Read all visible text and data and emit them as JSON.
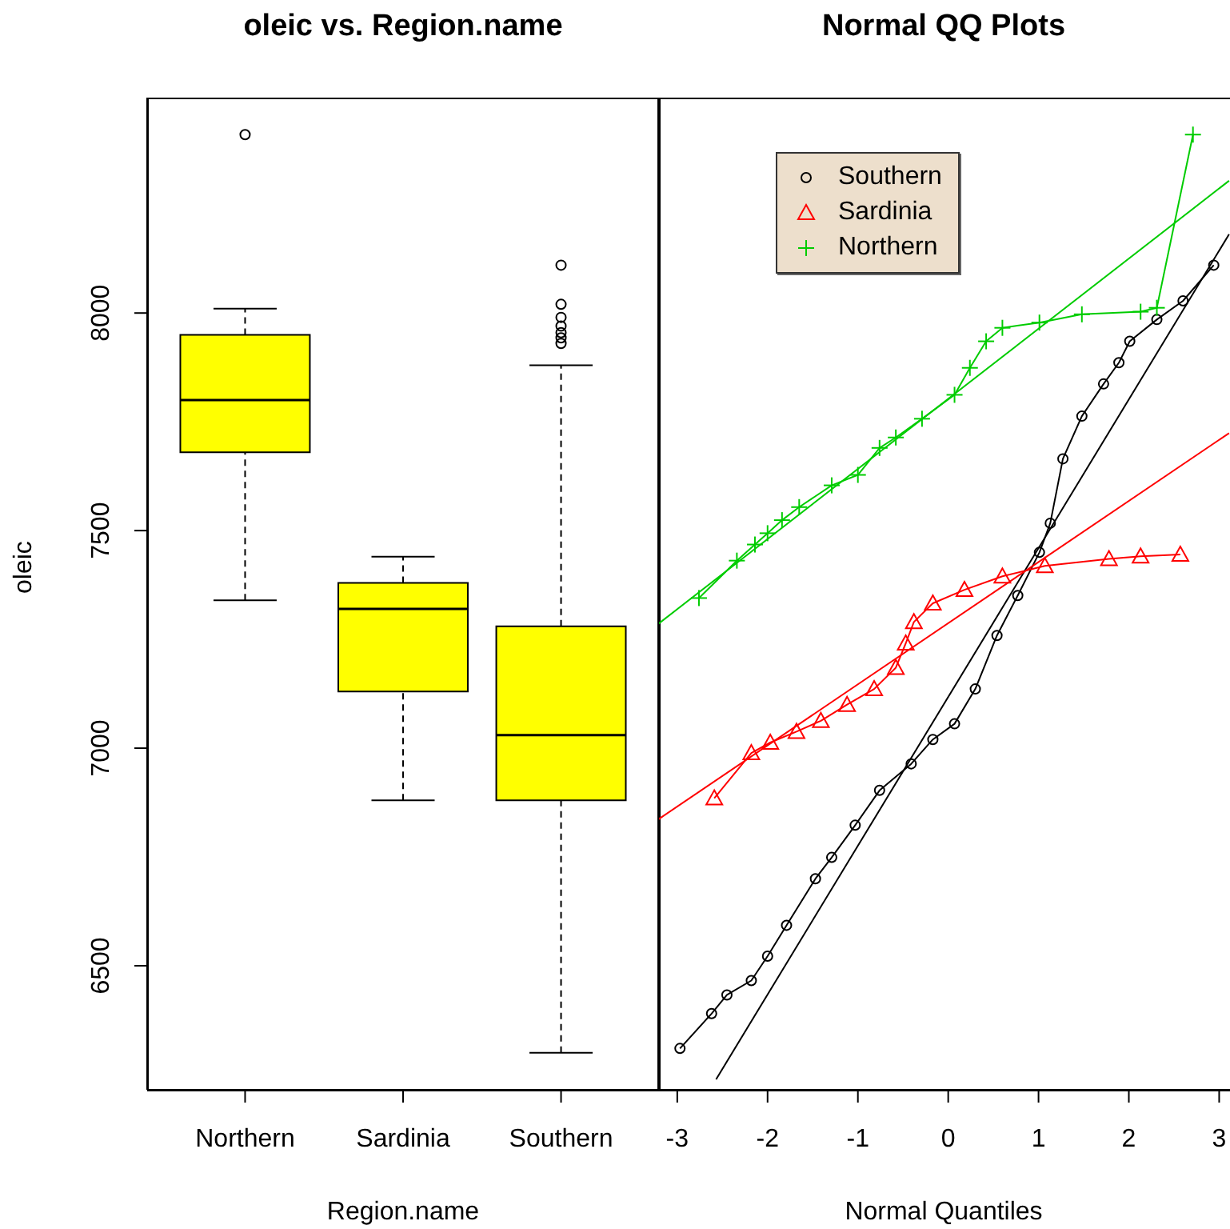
{
  "chart_data": [
    {
      "type": "box",
      "title": "oleic vs. Region.name",
      "xlabel": "Region.name",
      "ylabel": "oleic",
      "categories": [
        "Northern",
        "Sardinia",
        "Southern"
      ],
      "color": "#ffff00",
      "boxes": [
        {
          "low": 7340,
          "q1": 7680,
          "median": 7800,
          "q3": 7950,
          "high": 8010,
          "outliers": [
            8410
          ]
        },
        {
          "low": 6880,
          "q1": 7130,
          "median": 7320,
          "q3": 7380,
          "high": 7440
        },
        {
          "low": 6300,
          "q1": 6880,
          "median": 7030,
          "q3": 7280,
          "high": 7880,
          "outliers": [
            8110,
            8020,
            7990,
            7970,
            7955,
            7943,
            7930
          ]
        }
      ],
      "ylim": [
        6215,
        8495
      ],
      "yticks": [
        6500,
        7000,
        7500,
        8000
      ]
    },
    {
      "type": "line",
      "title": "Normal QQ Plots",
      "xlabel": "Normal Quantiles",
      "xlim": [
        -3.22,
        3.12
      ],
      "xticks": [
        -3,
        -2,
        -1,
        0,
        1,
        2,
        3
      ],
      "ylim": [
        6215,
        8495
      ],
      "tick_labels": "x",
      "legend": "top left",
      "series": [
        {
          "name": "Southern",
          "color": "#000000",
          "marker": "circle",
          "x": [
            -2.97,
            -2.62,
            -2.45,
            -2.18,
            -2.0,
            -1.79,
            -1.47,
            -1.29,
            -1.03,
            -0.76,
            -0.41,
            -0.17,
            0.07,
            0.3,
            0.54,
            0.77,
            1.01,
            1.13,
            1.27,
            1.48,
            1.72,
            1.89,
            2.01,
            2.31,
            2.6,
            2.94
          ],
          "values": [
            6310,
            6390,
            6433,
            6466,
            6522,
            6593,
            6700,
            6749,
            6823,
            6903,
            6964,
            7020,
            7056,
            7136,
            7259,
            7351,
            7450,
            7517,
            7665,
            7763,
            7837,
            7886,
            7935,
            7985,
            8028,
            8110
          ]
        },
        {
          "name": "Sardinia",
          "color": "#ff0000",
          "marker": "triangle",
          "x": [
            -2.59,
            -2.18,
            -1.97,
            -1.68,
            -1.41,
            -1.12,
            -0.82,
            -0.58,
            -0.47,
            -0.38,
            -0.17,
            0.18,
            0.6,
            1.07,
            1.78,
            2.13,
            2.57
          ],
          "values": [
            6885,
            6989,
            7013,
            7038,
            7063,
            7100,
            7136,
            7185,
            7241,
            7290,
            7333,
            7364,
            7395,
            7419,
            7435,
            7441,
            7445
          ]
        },
        {
          "name": "Northern",
          "color": "#00cc00",
          "marker": "cross",
          "x": [
            -2.76,
            -2.34,
            -2.14,
            -2.0,
            -1.84,
            -1.65,
            -1.29,
            -1.0,
            -0.76,
            -0.58,
            -0.29,
            0.07,
            0.24,
            0.42,
            0.6,
            1.01,
            1.48,
            2.13,
            2.31,
            2.71
          ],
          "values": [
            7345,
            7431,
            7468,
            7494,
            7524,
            7554,
            7604,
            7628,
            7690,
            7714,
            7757,
            7812,
            7874,
            7935,
            7966,
            7978,
            7997,
            8003,
            8012,
            8410
          ]
        },
        {
          "color": "#000000",
          "marker": "none",
          "x": [
            -2.57,
            3.11
          ],
          "values": [
            6239,
            8181
          ]
        },
        {
          "color": "#ff0000",
          "marker": "none",
          "x": [
            -3.22,
            3.11
          ],
          "values": [
            6835,
            7724
          ]
        },
        {
          "color": "#00cc00",
          "marker": "none",
          "x": [
            -3.22,
            3.11
          ],
          "values": [
            7284,
            8304
          ]
        }
      ]
    }
  ]
}
